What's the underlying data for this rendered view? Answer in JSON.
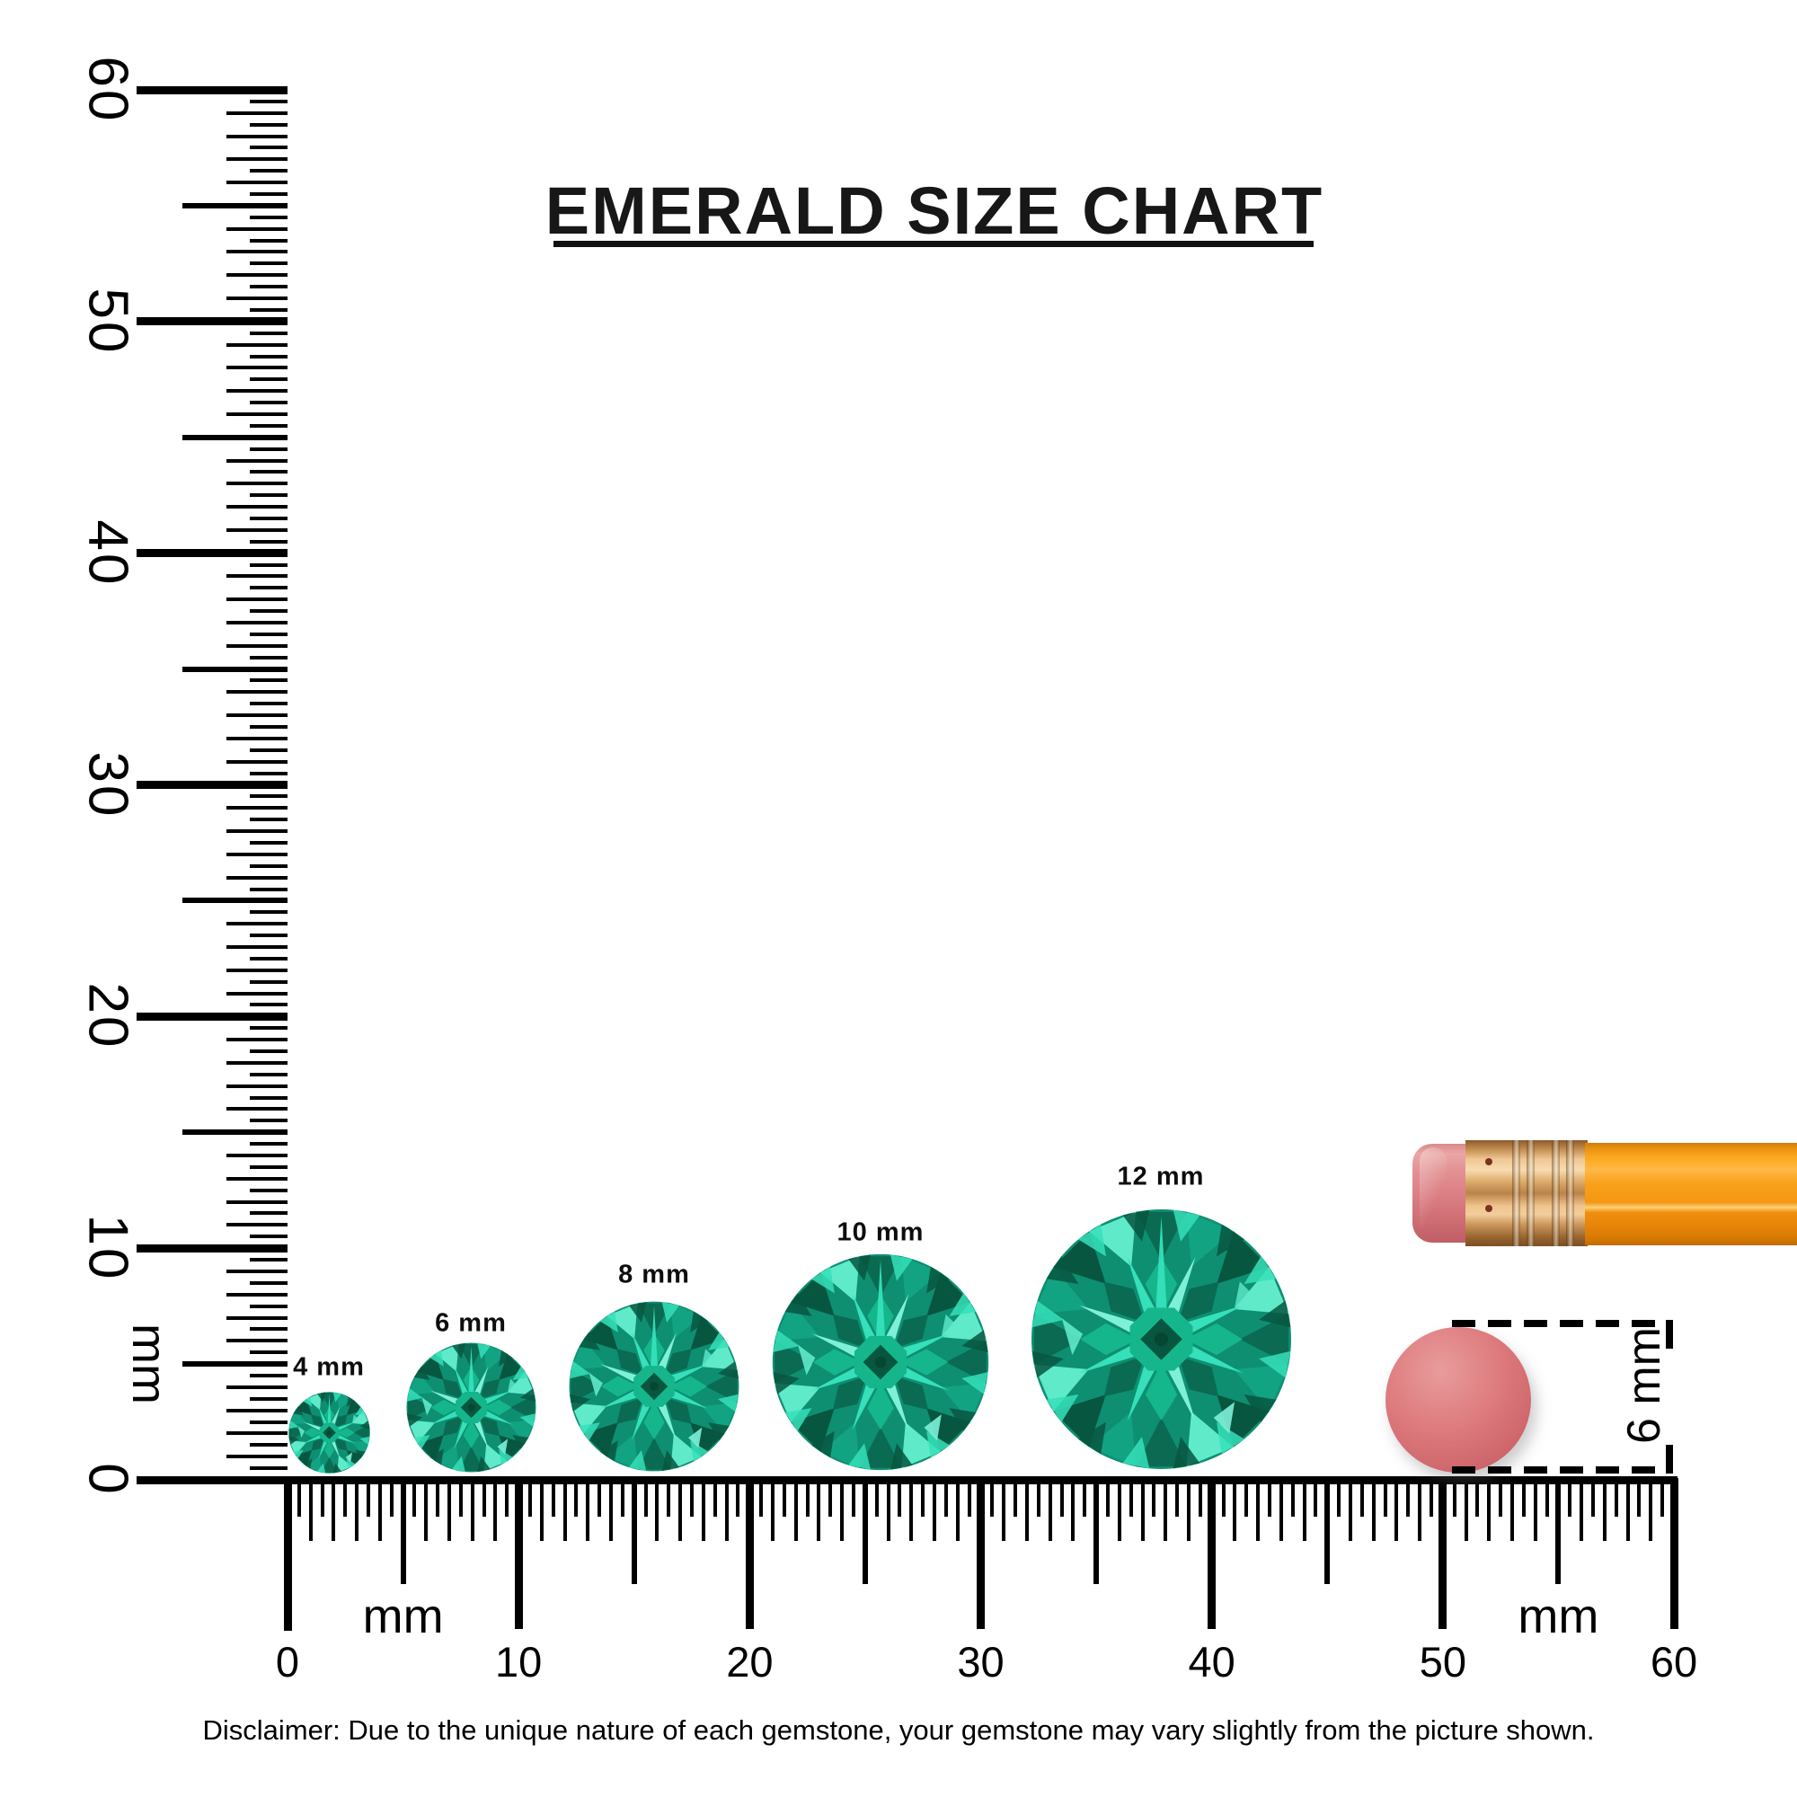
{
  "title": "EMERALD SIZE CHART",
  "disclaimer": "Disclaimer: Due to the unique nature of each gemstone, your gemstone may vary slightly from the picture shown.",
  "rulers": {
    "vertical": {
      "unit": "mm",
      "min_mm": 0,
      "max_mm": 60,
      "major_labels": [
        "0",
        "10",
        "20",
        "30",
        "40",
        "50",
        "60"
      ],
      "unit_label_position_mm": 5
    },
    "horizontal": {
      "unit": "mm",
      "min_mm": 0,
      "max_mm": 60,
      "major_labels": [
        "0",
        "10",
        "20",
        "30",
        "40",
        "50",
        "60"
      ],
      "unit_label_positions_mm": [
        5,
        55
      ]
    }
  },
  "gems": [
    {
      "label": "4 mm",
      "diameter_mm": 4
    },
    {
      "label": "6 mm",
      "diameter_mm": 6
    },
    {
      "label": "8 mm",
      "diameter_mm": 8
    },
    {
      "label": "10 mm",
      "diameter_mm": 10
    },
    {
      "label": "12 mm",
      "diameter_mm": 12
    }
  ],
  "pencil": {
    "eraser_diameter_label": "6 mm",
    "eraser_diameter_mm": 6
  },
  "colors": {
    "background": "#ffffff",
    "ink": "#000000",
    "title_ink": "#171717",
    "gem_base": "#0E8F72",
    "gem_dark": "#0A6B52",
    "gem_deep": "#064734",
    "gem_mid": "#12A383",
    "gem_cyan": "#35E0BA",
    "gem_light": "#7FF0D8",
    "eraser_pink": "#DB7F84",
    "disc_pink": "#D06A6E",
    "ferrule_gold": "#D9A767",
    "pencil_orange": "#F9A01A"
  },
  "chart_data": {
    "type": "table",
    "title": "EMERALD SIZE CHART",
    "categories": [
      "4 mm",
      "6 mm",
      "8 mm",
      "10 mm",
      "12 mm"
    ],
    "values": [
      4,
      6,
      8,
      10,
      12
    ],
    "xlabel": "mm",
    "ylabel": "mm",
    "x_axis_range_mm": [
      0,
      60
    ],
    "y_axis_range_mm": [
      0,
      60
    ],
    "tick_step_mm": 0.5,
    "reference_object_diameter_mm": 6
  }
}
